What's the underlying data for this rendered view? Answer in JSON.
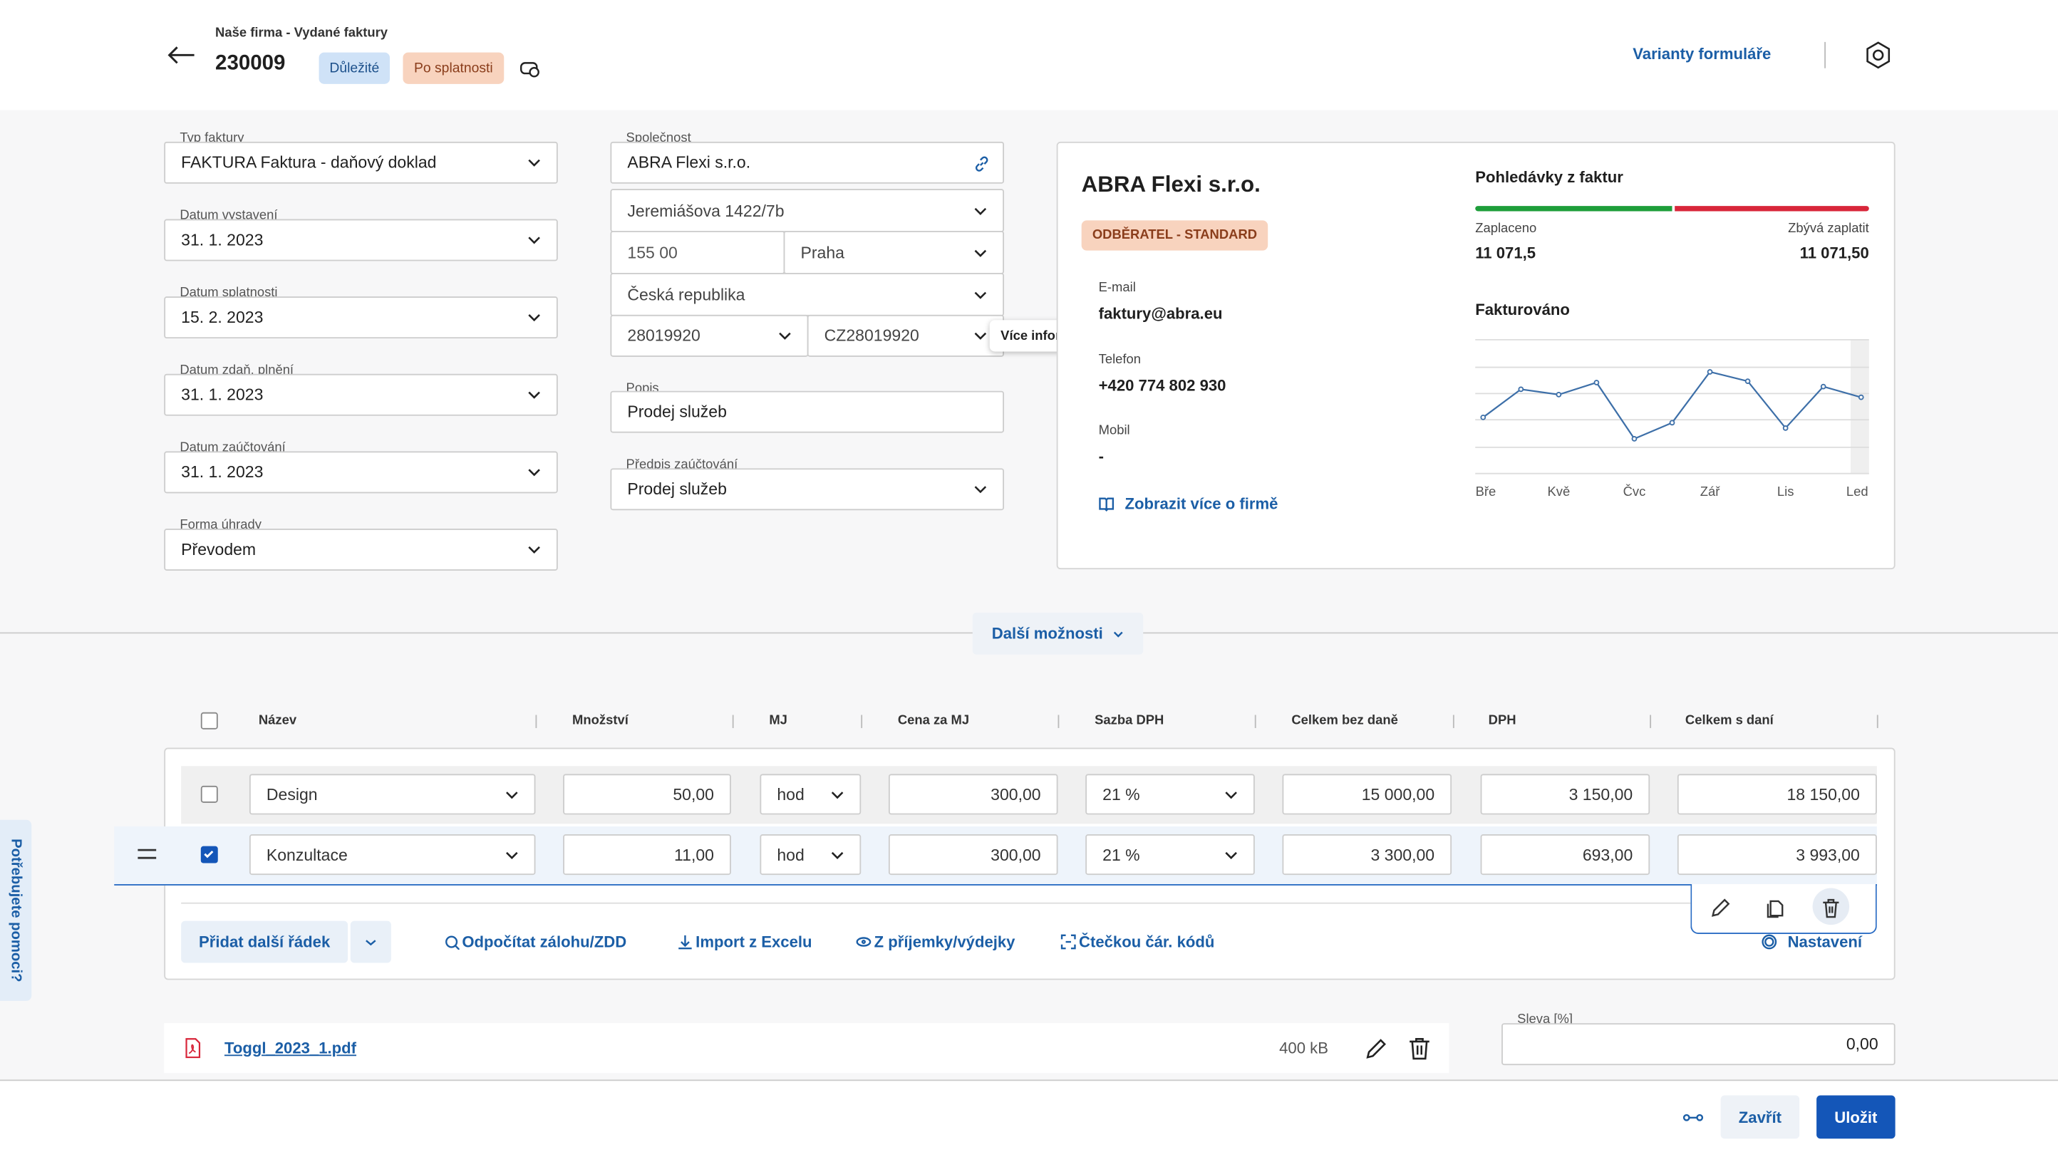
{
  "header": {
    "breadcrumb": "Naše firma - Vydané faktury",
    "document_number": "230009",
    "badges": [
      "Důležité",
      "Po splatnosti"
    ],
    "form_variants": "Varianty formuláře"
  },
  "invoice_fields": [
    {
      "label": "Typ faktury",
      "value": "FAKTURA Faktura - daňový doklad"
    },
    {
      "label": "Datum vystavení",
      "value": "31. 1. 2023"
    },
    {
      "label": "Datum splatnosti",
      "value": "15. 2. 2023"
    },
    {
      "label": "Datum zdaň. plnění",
      "value": "31. 1. 2023"
    },
    {
      "label": "Datum zaúčtování",
      "value": "31. 1. 2023"
    },
    {
      "label": "Forma úhrady",
      "value": "Převodem"
    }
  ],
  "company": {
    "label": "Společnost",
    "name": "ABRA Flexi s.r.o.",
    "street": "Jeremiášova 1422/7b",
    "zip": "155 00",
    "city": "Praha",
    "country": "Česká republika",
    "ico": "28019920",
    "dic": "CZ28019920",
    "tooltip": "Více informací o DIČ"
  },
  "description": {
    "label": "Popis",
    "value": "Prodej služeb"
  },
  "posting_rule": {
    "label": "Předpis zaúčtování",
    "value": "Prodej služeb"
  },
  "company_card": {
    "name": "ABRA Flexi s.r.o.",
    "badge": "ODBĚRATEL - STANDARD",
    "contacts": [
      {
        "label": "E-mail",
        "value": "faktury@abra.eu"
      },
      {
        "label": "Telefon",
        "value": "+420 774 802 930"
      },
      {
        "label": "Mobil",
        "value": "-"
      }
    ],
    "link": "Zobrazit více o firmě",
    "receivables": {
      "title": "Pohledávky z faktur",
      "paid_label": "Zaplaceno",
      "paid": "11 071,5",
      "remaining_label": "Zbývá zaplatit",
      "remaining": "11 071,50"
    }
  },
  "chart_data": {
    "type": "line",
    "title": "Fakturováno",
    "categories": [
      "Bře",
      null,
      "Kvě",
      null,
      "Čvc",
      null,
      "Zář",
      null,
      "Lis",
      null,
      "Led"
    ],
    "values": [
      42,
      63,
      59,
      68,
      26,
      38,
      76,
      69,
      34,
      65,
      57
    ],
    "color": "#3d6fa8",
    "ylim": [
      0,
      100
    ]
  },
  "more_options": "Další možnosti",
  "items_table": {
    "columns": [
      "Název",
      "Množství",
      "MJ",
      "Cena za MJ",
      "Sazba DPH",
      "Celkem bez daně",
      "DPH",
      "Celkem s daní"
    ],
    "rows": [
      [
        "Design",
        "50,00",
        "hod",
        "300,00",
        "21 %",
        "15 000,00",
        "3 150,00",
        "18 150,00"
      ],
      [
        "Konzultace",
        "11,00",
        "hod",
        "300,00",
        "21 %",
        "3 300,00",
        "693,00",
        "3 993,00"
      ]
    ]
  },
  "item_actions": {
    "add_row": "Přidat další řádek",
    "links": [
      "Odpočítat zálohu/ZDD",
      "Import z Excelu",
      "Z příjemky/výdejky",
      "Čtečkou čár. kódů"
    ],
    "settings": "Nastavení"
  },
  "attachment": {
    "file_name": "Toggl_2023_1.pdf",
    "size": "400 kB"
  },
  "discount": {
    "label": "Sleva [%]",
    "value": "0,00"
  },
  "footer": {
    "close": "Zavřít",
    "save": "Uložit"
  },
  "help_tab": "Potřebujete pomoci?"
}
